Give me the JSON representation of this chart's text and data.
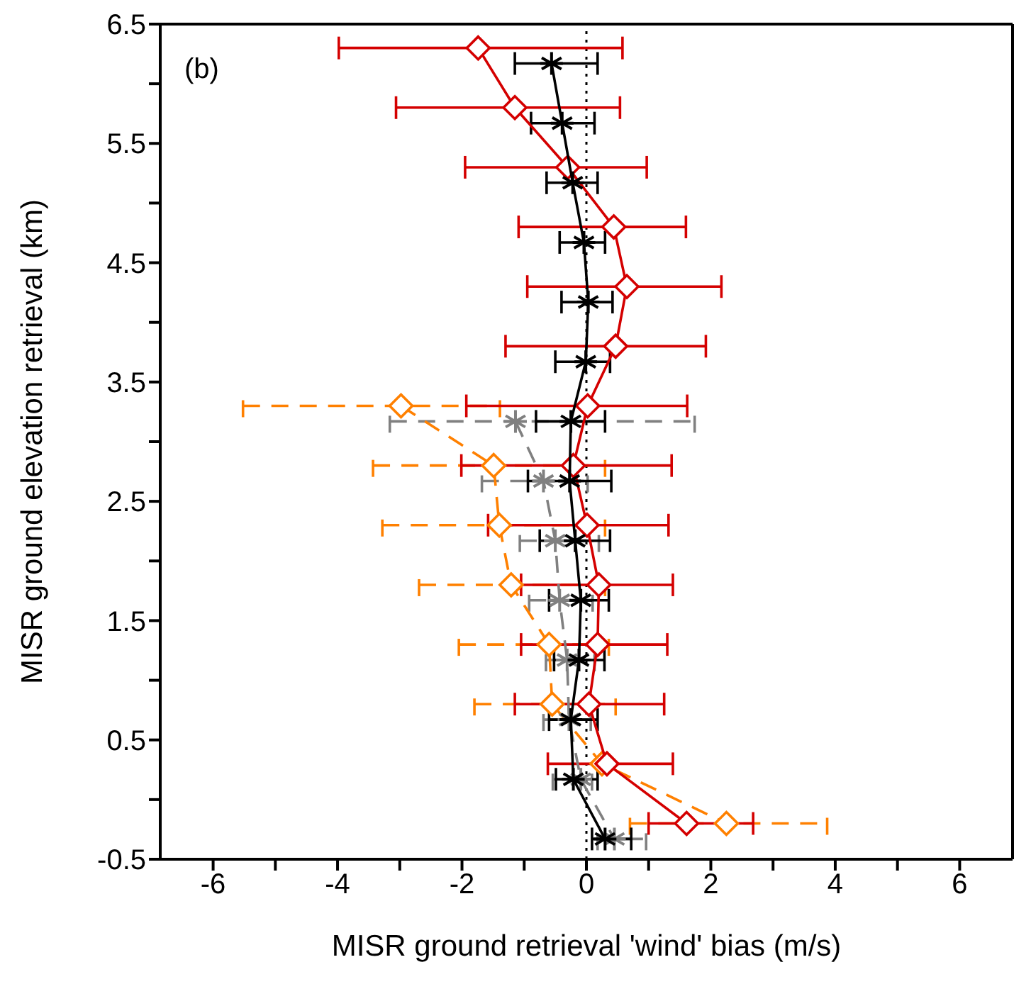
{
  "chart_data": {
    "type": "line",
    "xlabel": "MISR ground retrieval 'wind' bias (m/s)",
    "ylabel": "MISR ground elevation retrieval (km)",
    "annotations": [
      "(b)"
    ],
    "xlim": [
      -6.85,
      6.85
    ],
    "xticks": [
      -6,
      {
        "value": -5,
        "label": null
      },
      -4,
      {
        "value": -3,
        "label": null
      },
      -2,
      {
        "value": -1,
        "label": null
      },
      0,
      {
        "value": 1,
        "label": null
      },
      2,
      {
        "value": 3,
        "label": null
      },
      4,
      {
        "value": 5,
        "label": null
      },
      6
    ],
    "ylim": [
      -0.5,
      6.5
    ],
    "yticks": [
      -0.5,
      {
        "value": 0,
        "label": null
      },
      0.5,
      {
        "value": 1,
        "label": null
      },
      1.5,
      {
        "value": 2,
        "label": null
      },
      2.5,
      {
        "value": 3,
        "label": null
      },
      3.5,
      {
        "value": 4,
        "label": null
      },
      4.5,
      {
        "value": 5,
        "label": null
      },
      5.5,
      {
        "value": 6,
        "label": null
      },
      6.5
    ],
    "legend": false,
    "ref_lines": [
      {
        "axis": "x",
        "value": 0,
        "color": "#000000",
        "line_style": "dotted"
      }
    ],
    "series": [
      {
        "type": "line",
        "color": "#ff8000",
        "marker": "diamond",
        "line_style": "dashed",
        "x": [
          -2.98,
          -1.49,
          -1.4,
          -1.21,
          -0.6,
          -0.55,
          0.25,
          2.25
        ],
        "values": [
          3.3,
          2.8,
          2.3,
          1.8,
          1.3,
          0.8,
          0.3,
          -0.2
        ],
        "xerrors": [
          [
            -5.52,
            -1.39
          ],
          [
            -3.43,
            0.3
          ],
          [
            -3.28,
            0.3
          ],
          [
            -2.69,
            0.3
          ],
          [
            -2.05,
            0.36
          ],
          [
            -1.8,
            0.47
          ],
          null,
          [
            0.7,
            3.87
          ]
        ]
      },
      {
        "type": "line",
        "color": "#808080",
        "marker": "cross",
        "line_style": "dashed",
        "x": [
          -1.14,
          -0.69,
          -0.5,
          -0.43,
          -0.31,
          -0.28,
          -0.09,
          0.45
        ],
        "values": [
          3.17,
          2.67,
          2.17,
          1.67,
          1.17,
          0.67,
          0.17,
          -0.33
        ],
        "xerrors": [
          [
            -3.16,
            1.74
          ],
          [
            -1.68,
            0.02
          ],
          [
            -1.07,
            0.2
          ],
          [
            -0.92,
            0.1
          ],
          [
            -0.65,
            0.13
          ],
          [
            -0.69,
            0.07
          ],
          [
            -0.54,
            0.09
          ],
          [
            0.18,
            0.96
          ]
        ]
      },
      {
        "type": "line",
        "color": "#d40000",
        "marker": "diamond",
        "line_style": "solid",
        "x": [
          -1.74,
          -1.15,
          -0.3,
          0.44,
          0.65,
          0.47,
          0.02,
          -0.21,
          0.01,
          0.2,
          0.18,
          0.04,
          0.33,
          1.61
        ],
        "values": [
          6.3,
          5.8,
          5.3,
          4.8,
          4.3,
          3.8,
          3.3,
          2.8,
          2.3,
          1.8,
          1.3,
          0.8,
          0.3,
          -0.2
        ],
        "xerrors": [
          [
            -3.98,
            0.58
          ],
          [
            -3.06,
            0.54
          ],
          [
            -1.95,
            0.97
          ],
          [
            -1.09,
            1.6
          ],
          [
            -0.95,
            2.17
          ],
          [
            -1.3,
            1.92
          ],
          [
            -1.93,
            1.62
          ],
          [
            -2.01,
            1.37
          ],
          [
            -1.58,
            1.32
          ],
          [
            -1.05,
            1.39
          ],
          [
            -1.05,
            1.3
          ],
          [
            -1.15,
            1.25
          ],
          [
            -0.62,
            1.39
          ],
          [
            1.0,
            2.68
          ]
        ]
      },
      {
        "type": "line",
        "color": "#000000",
        "marker": "cross",
        "line_style": "solid",
        "x": [
          -0.56,
          -0.39,
          -0.22,
          -0.04,
          0.03,
          -0.01,
          -0.25,
          -0.27,
          -0.18,
          -0.09,
          -0.12,
          -0.25,
          -0.21,
          0.3
        ],
        "values": [
          6.17,
          5.67,
          5.17,
          4.67,
          4.17,
          3.67,
          3.17,
          2.67,
          2.17,
          1.67,
          1.17,
          0.67,
          0.17,
          -0.33
        ],
        "xerrors": [
          [
            -1.15,
            0.18
          ],
          [
            -0.89,
            0.13
          ],
          [
            -0.64,
            0.18
          ],
          [
            -0.43,
            0.3
          ],
          [
            -0.4,
            0.42
          ],
          [
            -0.5,
            0.38
          ],
          [
            -0.81,
            0.3
          ],
          [
            -0.94,
            0.4
          ],
          [
            -0.75,
            0.38
          ],
          [
            -0.6,
            0.36
          ],
          [
            -0.52,
            0.29
          ],
          [
            -0.6,
            0.18
          ],
          [
            -0.49,
            0.18
          ],
          [
            0.09,
            0.72
          ]
        ]
      }
    ]
  }
}
